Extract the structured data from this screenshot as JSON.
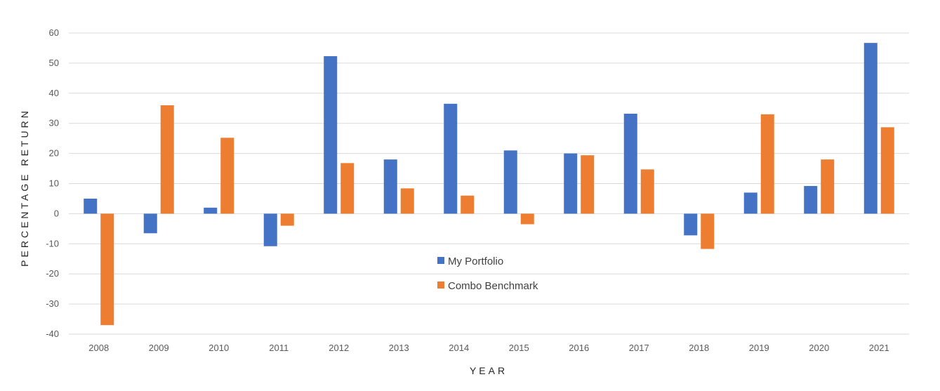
{
  "chart_data": {
    "type": "bar",
    "xlabel": "YEAR",
    "ylabel": "PERCENTAGE RETURN",
    "ylim": [
      -40,
      60
    ],
    "yticks": [
      60,
      50,
      40,
      30,
      20,
      10,
      0,
      -10,
      -20,
      -30,
      -40
    ],
    "grid": true,
    "legend_position": "center",
    "categories": [
      "2008",
      "2009",
      "2010",
      "2011",
      "2012",
      "2013",
      "2014",
      "2015",
      "2016",
      "2017",
      "2018",
      "2019",
      "2020",
      "2021"
    ],
    "series": [
      {
        "name": "My Portfolio",
        "color": "#4472C4",
        "values": [
          5.0,
          -6.5,
          2.0,
          -10.8,
          52.3,
          18.0,
          36.5,
          21.0,
          20.0,
          33.2,
          -7.2,
          7.0,
          9.2,
          56.7
        ]
      },
      {
        "name": "Combo Benchmark",
        "color": "#ED7D31",
        "values": [
          -37.0,
          36.0,
          25.2,
          -4.0,
          16.8,
          8.4,
          6.0,
          -3.5,
          19.4,
          14.7,
          -11.7,
          33.0,
          18.0,
          28.7
        ]
      }
    ]
  }
}
